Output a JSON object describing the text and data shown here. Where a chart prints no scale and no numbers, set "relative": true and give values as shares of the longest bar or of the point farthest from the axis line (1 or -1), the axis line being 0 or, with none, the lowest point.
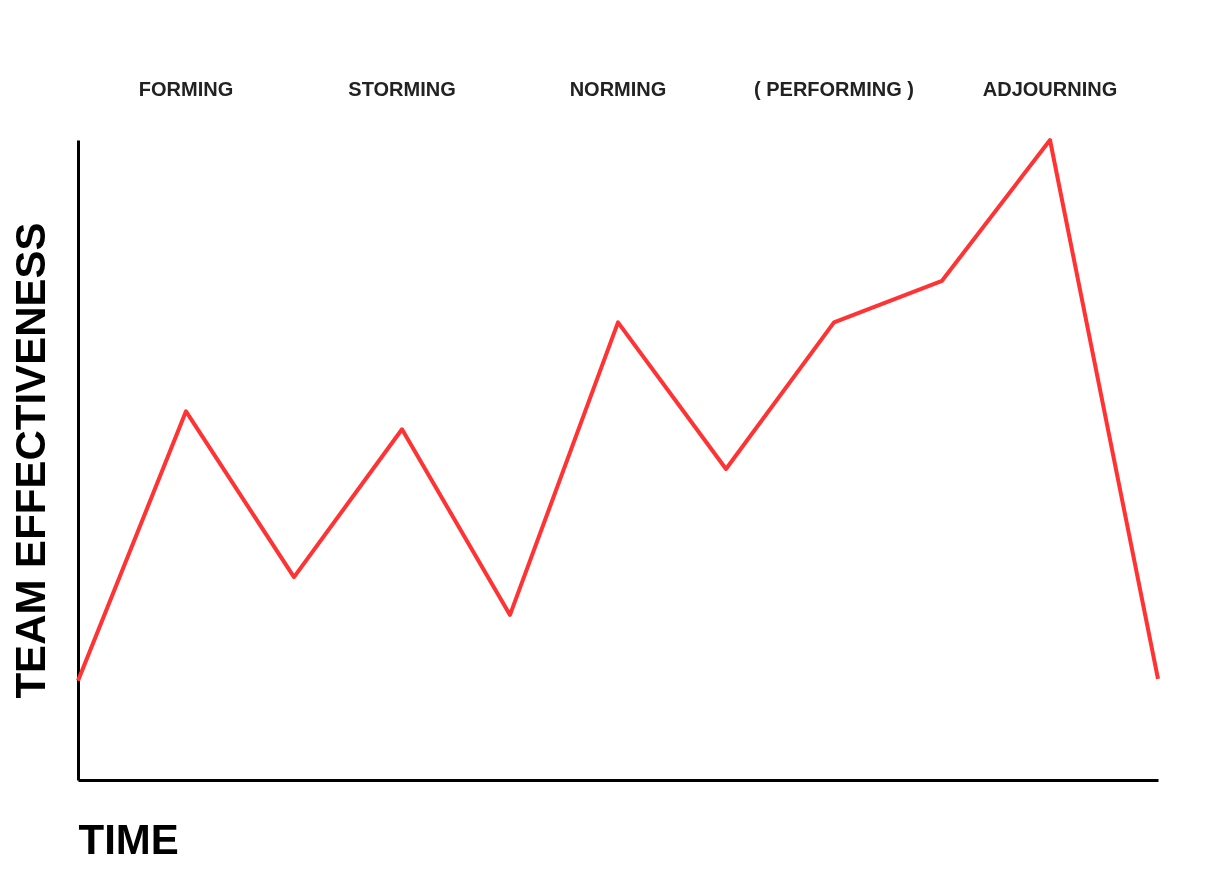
{
  "chart_data": {
    "type": "line",
    "xlabel": "TIME",
    "ylabel": "TEAM EFFECTIVENESS",
    "relative": true,
    "tick_labels": false,
    "grid": false,
    "line_style": "solid",
    "categories": [
      null,
      null,
      null,
      null,
      null,
      null,
      null,
      null,
      null,
      null,
      null
    ],
    "series": [
      {
        "color": "#ff3333",
        "values": [
          0.155,
          0.576,
          0.317,
          0.548,
          0.258,
          0.715,
          0.486,
          0.715,
          0.78,
          1,
          0.158
        ]
      }
    ],
    "annotations": [
      "FORMING",
      "STORMING",
      "NORMING",
      "( PERFORMING )",
      "ADJOURNING"
    ]
  }
}
